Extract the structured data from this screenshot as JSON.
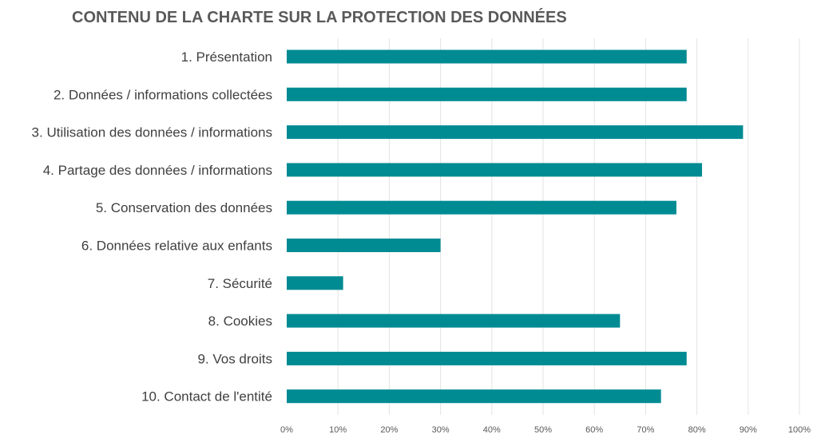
{
  "chart_data": {
    "type": "bar",
    "orientation": "horizontal",
    "title": "CONTENU DE LA CHARTE SUR LA PROTECTION DES DONNÉES",
    "xlabel": "",
    "ylabel": "",
    "categories": [
      "1. Présentation",
      "2. Données / informations collectées",
      "3. Utilisation des données / informations",
      "4. Partage des données / informations",
      "5. Conservation des données",
      "6. Données relative aux enfants",
      "7. Sécurité",
      "8. Cookies",
      "9. Vos droits",
      "10. Contact de l'entité"
    ],
    "values": [
      78,
      78,
      89,
      81,
      76,
      30,
      11,
      65,
      78,
      73
    ],
    "xlim": [
      0,
      100
    ],
    "x_ticks": [
      "0%",
      "10%",
      "20%",
      "30%",
      "40%",
      "50%",
      "60%",
      "70%",
      "80%",
      "90%",
      "100%"
    ],
    "grid": true,
    "bar_color": "#008b93",
    "legend": "none"
  }
}
